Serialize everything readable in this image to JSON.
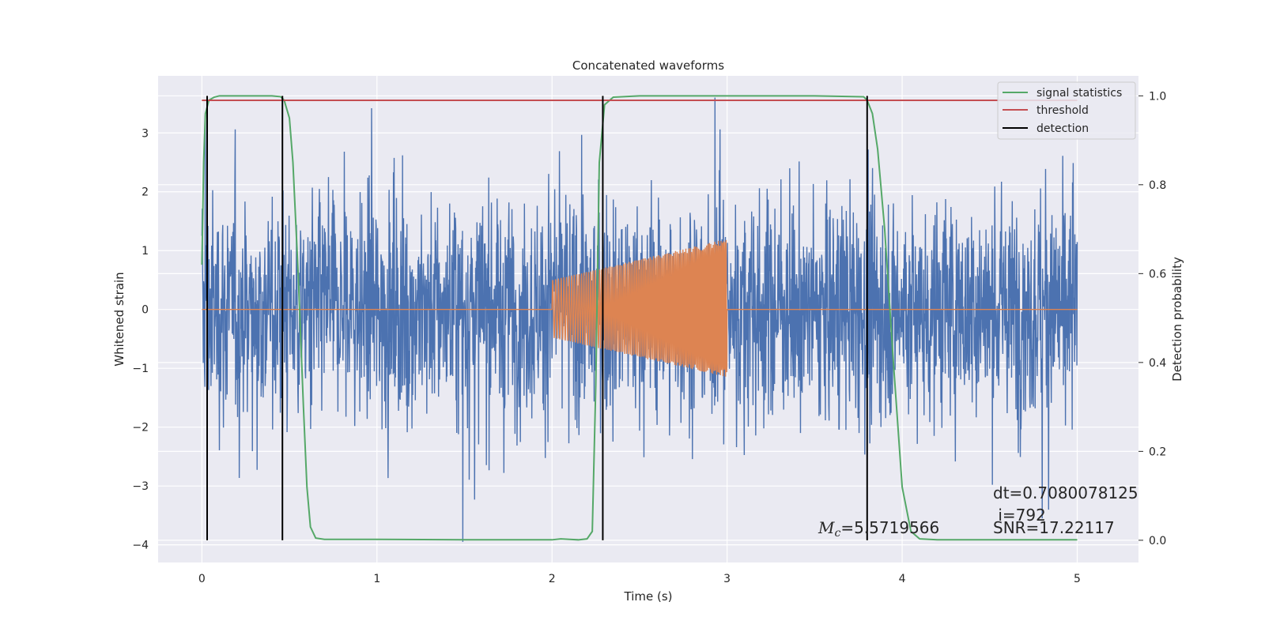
{
  "chart_data": {
    "type": "line",
    "title": "Concatenated waveforms",
    "xlabel": "Time (s)",
    "ylabel_left": "Whitened strain",
    "ylabel_right": "Detection probability",
    "xlim": [
      -0.25,
      5.35
    ],
    "ylim_left": [
      -4.3,
      3.97
    ],
    "ylim_right": [
      -0.05,
      1.045
    ],
    "xticks": [
      0,
      1,
      2,
      3,
      4,
      5
    ],
    "yticks_left": [
      -4,
      -3,
      -2,
      -1,
      0,
      1,
      2,
      3
    ],
    "yticks_right": [
      0.0,
      0.2,
      0.4,
      0.6,
      0.8,
      1.0
    ],
    "xtick_labels": [
      "0",
      "1",
      "2",
      "3",
      "4",
      "5"
    ],
    "ytick_labels_left": [
      "−4",
      "−3",
      "−2",
      "−1",
      "0",
      "1",
      "2",
      "3"
    ],
    "ytick_labels_right": [
      "0.0",
      "0.2",
      "0.4",
      "0.6",
      "0.8",
      "1.0"
    ],
    "grid": true,
    "legend_position": "top-right",
    "series": [
      {
        "name": "",
        "role": "whitened noisy strain",
        "axis": "left",
        "color": "#4c72b0",
        "x_range": [
          0,
          5
        ],
        "typical_amplitude": 1.4,
        "peak_range": [
          -3.95,
          3.6
        ],
        "notable_peaks": [
          {
            "x": 0.02,
            "y": 3.3
          },
          {
            "x": 0.97,
            "y": 3.42
          },
          {
            "x": 1.49,
            "y": -3.95
          },
          {
            "x": 2.93,
            "y": 3.6
          },
          {
            "x": 4.8,
            "y": -3.55
          }
        ]
      },
      {
        "name": "",
        "role": "injected chirp signal",
        "axis": "left",
        "color": "#dd8452",
        "x_range": [
          0,
          5
        ],
        "chirp_window": [
          2.0,
          3.0
        ],
        "start_amplitude": 0.5,
        "end_amplitude": 1.2,
        "end_negative": -1.15
      },
      {
        "name": "signal statistics",
        "axis": "right",
        "color": "#55a868",
        "x": [
          0.0,
          0.01,
          0.02,
          0.04,
          0.07,
          0.1,
          0.2,
          0.3,
          0.4,
          0.45,
          0.47,
          0.5,
          0.52,
          0.55,
          0.58,
          0.6,
          0.62,
          0.65,
          0.7,
          1.0,
          1.5,
          2.0,
          2.05,
          2.1,
          2.15,
          2.2,
          2.23,
          2.25,
          2.27,
          2.3,
          2.35,
          2.5,
          3.0,
          3.5,
          3.78,
          3.8,
          3.83,
          3.86,
          3.9,
          3.95,
          4.0,
          4.05,
          4.1,
          4.2,
          4.5,
          5.0
        ],
        "values": [
          0.62,
          0.85,
          0.96,
          0.99,
          0.997,
          1.0,
          1.0,
          1.0,
          1.0,
          0.998,
          0.99,
          0.95,
          0.85,
          0.6,
          0.3,
          0.12,
          0.03,
          0.005,
          0.002,
          0.002,
          0.001,
          0.001,
          0.003,
          0.002,
          0.001,
          0.003,
          0.02,
          0.35,
          0.85,
          0.98,
          0.997,
          1.0,
          1.0,
          1.0,
          0.998,
          0.99,
          0.96,
          0.88,
          0.7,
          0.4,
          0.12,
          0.02,
          0.003,
          0.001,
          0.001,
          0.001
        ]
      },
      {
        "name": "threshold",
        "axis": "right",
        "color": "#c44e52",
        "x": [
          0,
          5
        ],
        "values": [
          0.99,
          0.99
        ]
      },
      {
        "name": "detection",
        "axis": "right",
        "color": "#000000",
        "type": "vlines",
        "x": [
          0.03,
          0.46,
          2.29,
          3.8
        ],
        "ymin": 0.0,
        "ymax": 1.0
      }
    ],
    "annotations": {
      "mc_label": "M",
      "mc_sub": "c",
      "mc_value": "=5.5719566",
      "dt": "dt=0.7080078125",
      "i": " i=792",
      "snr": "SNR=17.22117"
    }
  }
}
